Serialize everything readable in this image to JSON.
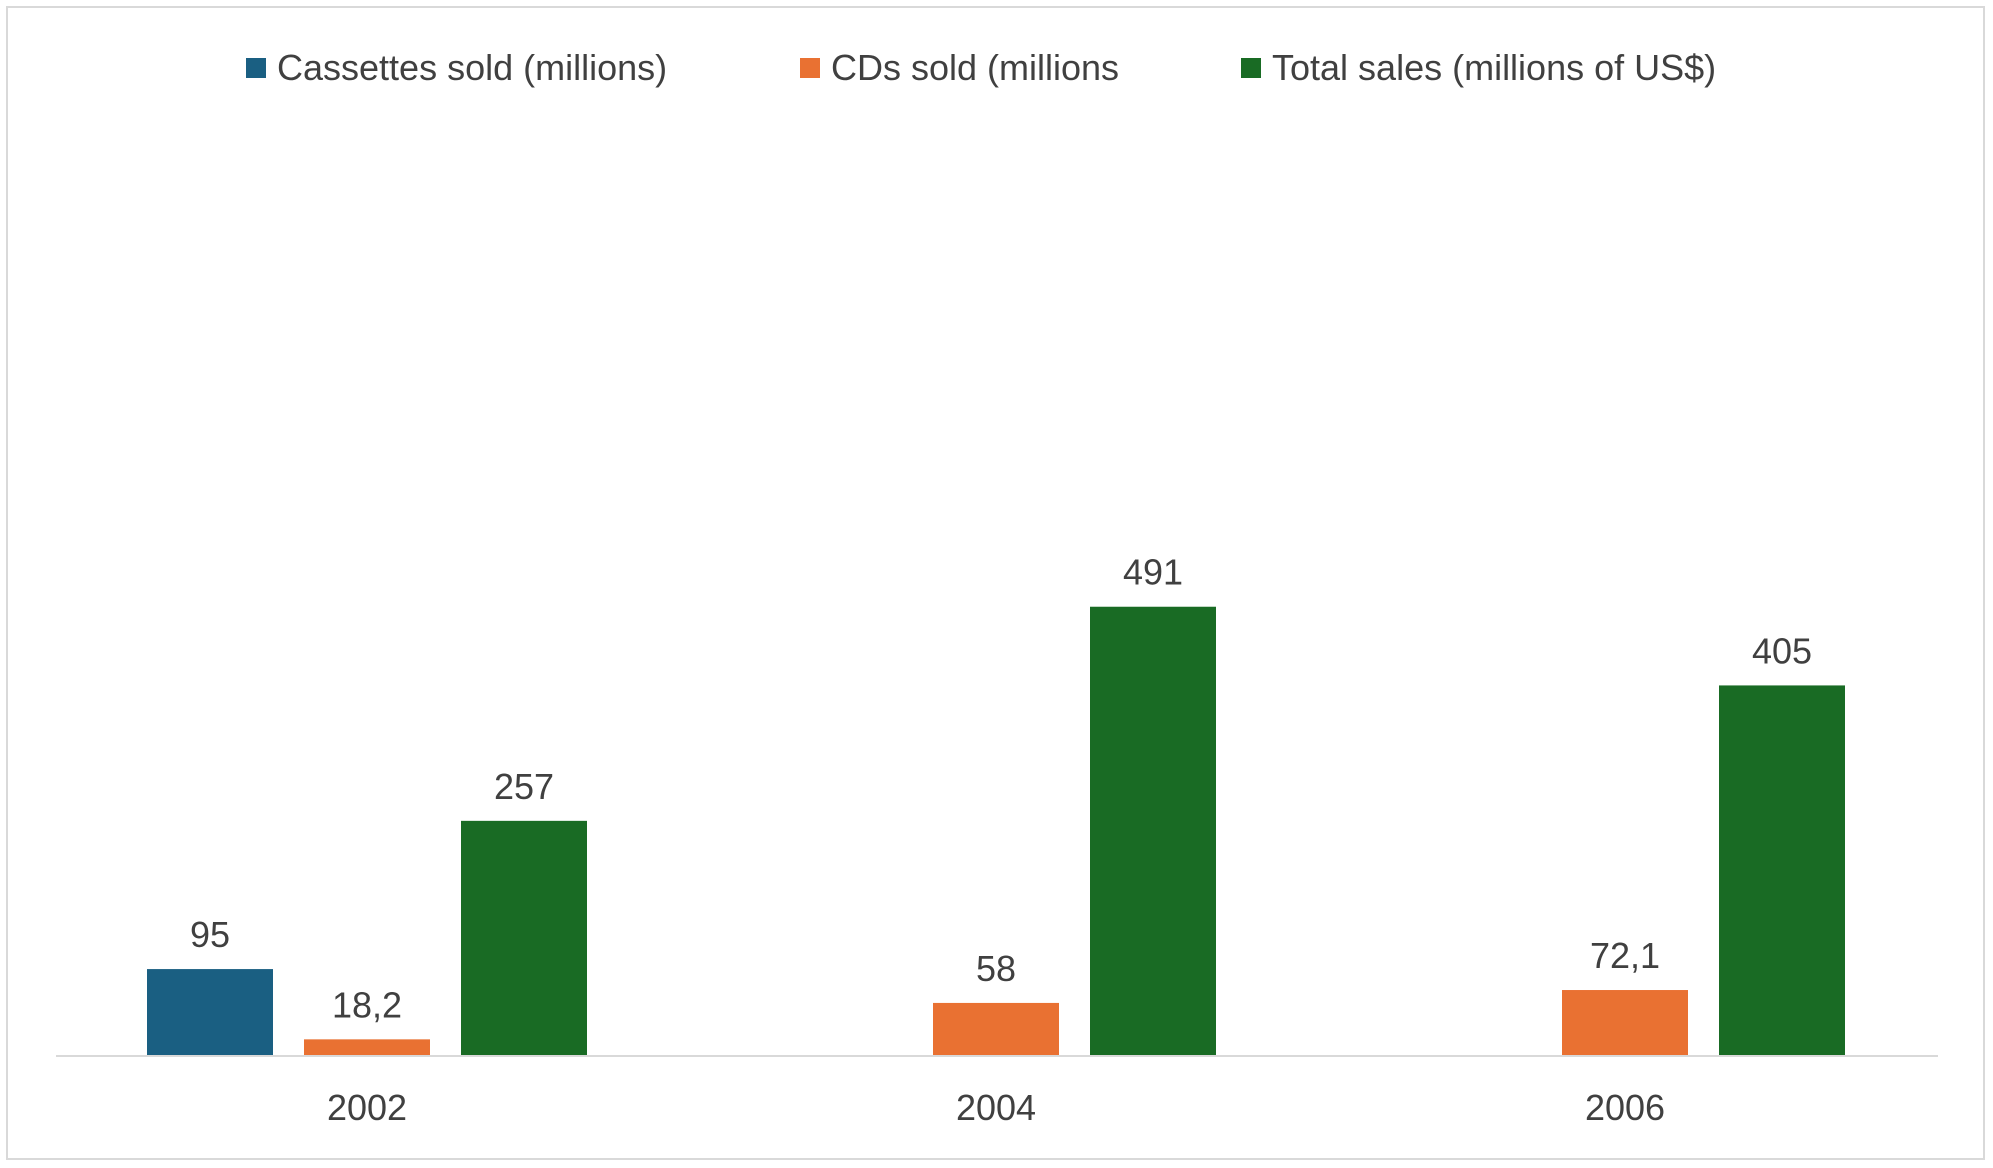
{
  "chart_data": {
    "type": "bar",
    "title": "",
    "xlabel": "",
    "ylabel": "",
    "categories": [
      "2002",
      "2004",
      "2006"
    ],
    "ylim": [
      0,
      600
    ],
    "grid": false,
    "legend_position": "top",
    "series": [
      {
        "name": "Cassettes sold (millions)",
        "color": "#1a5f82",
        "values": [
          95,
          null,
          null
        ],
        "labels": [
          "95",
          "",
          ""
        ]
      },
      {
        "name": "CDs sold (millions",
        "color": "#e97132",
        "values": [
          18.2,
          58,
          72.1
        ],
        "labels": [
          "18,2",
          "58",
          "72,1"
        ]
      },
      {
        "name": "Total sales (millions of US$)",
        "color": "#196b24",
        "values": [
          257,
          491,
          405
        ],
        "labels": [
          "257",
          "491",
          "405"
        ]
      }
    ]
  }
}
